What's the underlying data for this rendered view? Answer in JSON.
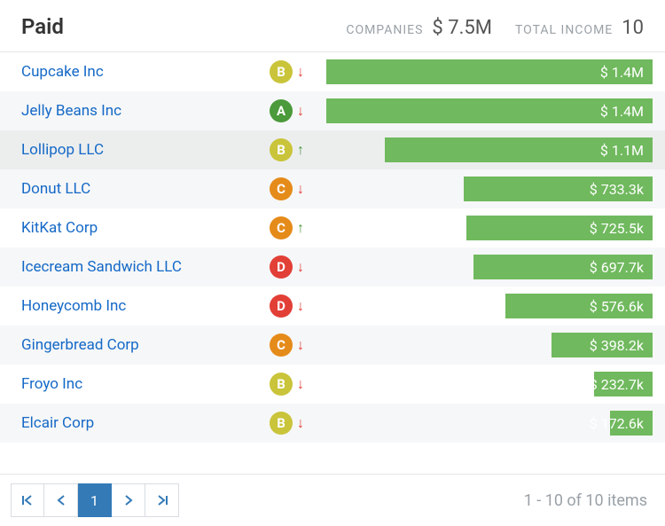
{
  "header": {
    "title": "Paid",
    "companies_label": "COMPANIES",
    "companies_value": "$ 7.5M",
    "income_label": "TOTAL INCOME",
    "income_value": "10"
  },
  "grades": {
    "A": "#4b9a3b",
    "B": "#c9c43a",
    "C": "#e58b1a",
    "D": "#e23f36"
  },
  "trend_colors": {
    "up": "#4b9a3b",
    "down": "#e23f36"
  },
  "bar_color": "#70b95e",
  "rows": [
    {
      "company": "Cupcake Inc",
      "grade": "B",
      "trend": "down",
      "amount_label": "$ 1.4M",
      "bar_pct": 100,
      "selected": false
    },
    {
      "company": "Jelly Beans Inc",
      "grade": "A",
      "trend": "down",
      "amount_label": "$ 1.4M",
      "bar_pct": 100,
      "selected": false
    },
    {
      "company": "Lollipop LLC",
      "grade": "B",
      "trend": "up",
      "amount_label": "$ 1.1M",
      "bar_pct": 82,
      "selected": true
    },
    {
      "company": "Donut LLC",
      "grade": "C",
      "trend": "down",
      "amount_label": "$ 733.3k",
      "bar_pct": 58,
      "selected": false
    },
    {
      "company": "KitKat Corp",
      "grade": "C",
      "trend": "up",
      "amount_label": "$ 725.5k",
      "bar_pct": 57,
      "selected": false
    },
    {
      "company": "Icecream Sandwich LLC",
      "grade": "D",
      "trend": "down",
      "amount_label": "$ 697.7k",
      "bar_pct": 55,
      "selected": false
    },
    {
      "company": "Honeycomb Inc",
      "grade": "D",
      "trend": "down",
      "amount_label": "$ 576.6k",
      "bar_pct": 45,
      "selected": false
    },
    {
      "company": "Gingerbread Corp",
      "grade": "C",
      "trend": "down",
      "amount_label": "$ 398.2k",
      "bar_pct": 31,
      "selected": false
    },
    {
      "company": "Froyo Inc",
      "grade": "B",
      "trend": "down",
      "amount_label": "$ 232.7k",
      "bar_pct": 18,
      "selected": false
    },
    {
      "company": "Elcair Corp",
      "grade": "B",
      "trend": "down",
      "amount_label": "$ 172.6k",
      "bar_pct": 13,
      "selected": false
    }
  ],
  "pagination": {
    "current": "1",
    "summary": "1 - 10 of 10 items"
  }
}
